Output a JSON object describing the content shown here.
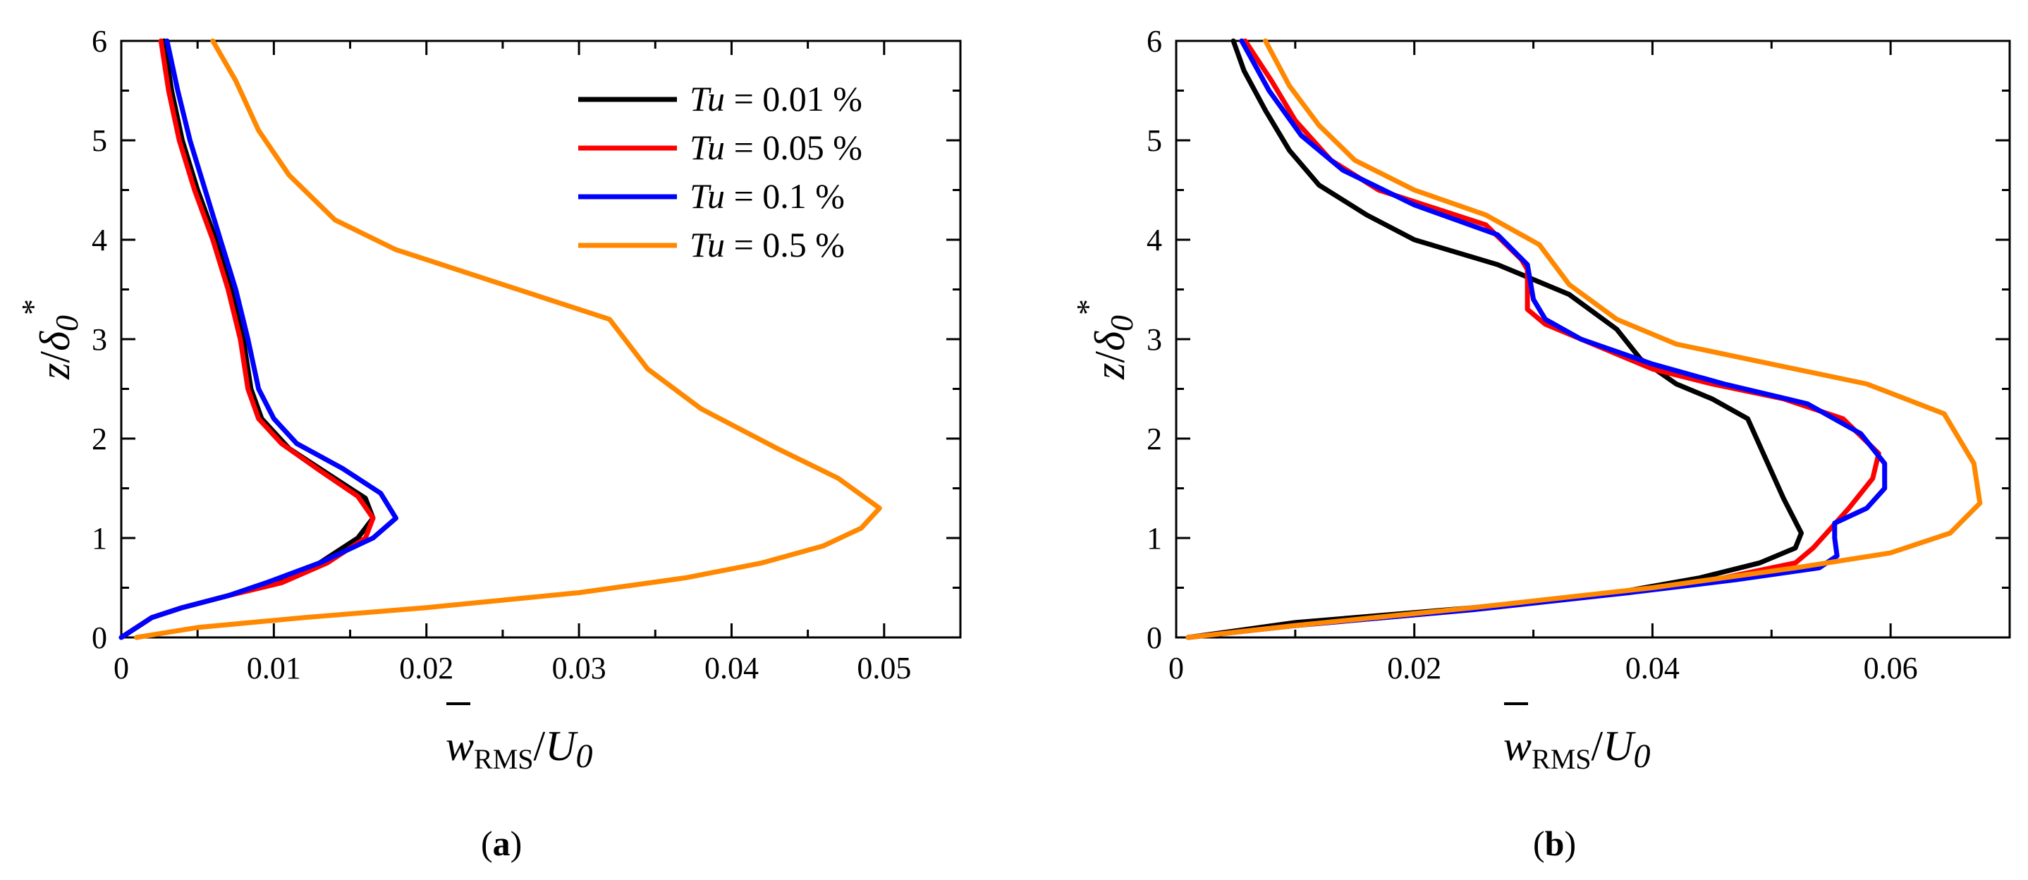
{
  "chart_data": [
    {
      "type": "line",
      "panel_label": "a",
      "xlabel": {
        "symbol": "w",
        "subscript": "RMS",
        "denominator": "U",
        "denominator_subscript": "0"
      },
      "ylabel": {
        "numerator": "z",
        "denominator": "δ",
        "denominator_subscript": "0",
        "superscript": "*"
      },
      "xlim": [
        0,
        0.055
      ],
      "ylim": [
        0,
        6
      ],
      "xticks": [
        0,
        0.01,
        0.02,
        0.03,
        0.04,
        0.05
      ],
      "xtick_labels": [
        "0",
        "0.01",
        "0.02",
        "0.03",
        "0.04",
        "0.05"
      ],
      "yticks": [
        0,
        1,
        2,
        3,
        4,
        5,
        6
      ],
      "ytick_labels": [
        "0",
        "1",
        "2",
        "3",
        "4",
        "5",
        "6"
      ],
      "legend_position": "top-right",
      "grid": false,
      "series": [
        {
          "name": "Tu = 0.01 %",
          "tu_value": "0.01",
          "color": "#000000",
          "points": [
            [
              0,
              0
            ],
            [
              0.002,
              0.2
            ],
            [
              0.004,
              0.3
            ],
            [
              0.007,
              0.42
            ],
            [
              0.01,
              0.55
            ],
            [
              0.013,
              0.75
            ],
            [
              0.0155,
              1.0
            ],
            [
              0.0165,
              1.2
            ],
            [
              0.016,
              1.4
            ],
            [
              0.0135,
              1.65
            ],
            [
              0.011,
              1.9
            ],
            [
              0.0092,
              2.2
            ],
            [
              0.0085,
              2.5
            ],
            [
              0.008,
              3.0
            ],
            [
              0.0072,
              3.5
            ],
            [
              0.0062,
              4.0
            ],
            [
              0.005,
              4.5
            ],
            [
              0.004,
              5.0
            ],
            [
              0.0033,
              5.5
            ],
            [
              0.0028,
              6.0
            ]
          ]
        },
        {
          "name": "Tu = 0.05 %",
          "tu_value": "0.05",
          "color": "#ff0000",
          "points": [
            [
              0,
              0
            ],
            [
              0.002,
              0.2
            ],
            [
              0.004,
              0.3
            ],
            [
              0.007,
              0.42
            ],
            [
              0.0105,
              0.55
            ],
            [
              0.0135,
              0.75
            ],
            [
              0.016,
              1.0
            ],
            [
              0.0165,
              1.2
            ],
            [
              0.0155,
              1.42
            ],
            [
              0.013,
              1.68
            ],
            [
              0.0105,
              1.95
            ],
            [
              0.009,
              2.2
            ],
            [
              0.0083,
              2.5
            ],
            [
              0.0078,
              3.0
            ],
            [
              0.007,
              3.5
            ],
            [
              0.006,
              4.0
            ],
            [
              0.0048,
              4.5
            ],
            [
              0.0038,
              5.0
            ],
            [
              0.0031,
              5.5
            ],
            [
              0.0026,
              6.0
            ]
          ]
        },
        {
          "name": "Tu = 0.1 %",
          "tu_value": "0.1",
          "color": "#0000ff",
          "points": [
            [
              0,
              0
            ],
            [
              0.002,
              0.2
            ],
            [
              0.004,
              0.3
            ],
            [
              0.007,
              0.42
            ],
            [
              0.0095,
              0.55
            ],
            [
              0.013,
              0.75
            ],
            [
              0.0165,
              1.0
            ],
            [
              0.018,
              1.2
            ],
            [
              0.017,
              1.45
            ],
            [
              0.0145,
              1.7
            ],
            [
              0.0115,
              1.95
            ],
            [
              0.01,
              2.2
            ],
            [
              0.009,
              2.5
            ],
            [
              0.0083,
              3.0
            ],
            [
              0.0075,
              3.5
            ],
            [
              0.0065,
              4.0
            ],
            [
              0.0055,
              4.5
            ],
            [
              0.0045,
              5.0
            ],
            [
              0.0037,
              5.5
            ],
            [
              0.003,
              6.0
            ]
          ]
        },
        {
          "name": "Tu = 0.5 %",
          "tu_value": "0.5",
          "color": "#ff8800",
          "points": [
            [
              0.001,
              0
            ],
            [
              0.005,
              0.1
            ],
            [
              0.012,
              0.2
            ],
            [
              0.02,
              0.3
            ],
            [
              0.03,
              0.45
            ],
            [
              0.037,
              0.6
            ],
            [
              0.042,
              0.75
            ],
            [
              0.046,
              0.92
            ],
            [
              0.0485,
              1.1
            ],
            [
              0.0497,
              1.3
            ],
            [
              0.047,
              1.6
            ],
            [
              0.043,
              1.9
            ],
            [
              0.038,
              2.3
            ],
            [
              0.0345,
              2.7
            ],
            [
              0.032,
              3.2
            ],
            [
              0.025,
              3.55
            ],
            [
              0.018,
              3.9
            ],
            [
              0.014,
              4.2
            ],
            [
              0.011,
              4.65
            ],
            [
              0.009,
              5.1
            ],
            [
              0.0075,
              5.6
            ],
            [
              0.006,
              6.0
            ]
          ]
        }
      ]
    },
    {
      "type": "line",
      "panel_label": "b",
      "xlabel": {
        "symbol": "w",
        "subscript": "RMS",
        "denominator": "U",
        "denominator_subscript": "0"
      },
      "ylabel": {
        "numerator": "z",
        "denominator": "δ",
        "denominator_subscript": "0",
        "superscript": "*"
      },
      "xlim": [
        0,
        0.07
      ],
      "ylim": [
        0,
        6
      ],
      "xticks": [
        0,
        0.02,
        0.04,
        0.06
      ],
      "xtick_labels": [
        "0",
        "0.02",
        "0.04",
        "0.06"
      ],
      "yticks": [
        0,
        1,
        2,
        3,
        4,
        5,
        6
      ],
      "ytick_labels": [
        "0",
        "1",
        "2",
        "3",
        "4",
        "5",
        "6"
      ],
      "grid": false,
      "series": [
        {
          "name": "Tu = 0.01 %",
          "color": "#000000",
          "points": [
            [
              0.001,
              0
            ],
            [
              0.01,
              0.15
            ],
            [
              0.025,
              0.3
            ],
            [
              0.037,
              0.45
            ],
            [
              0.044,
              0.6
            ],
            [
              0.049,
              0.75
            ],
            [
              0.052,
              0.9
            ],
            [
              0.0525,
              1.05
            ],
            [
              0.051,
              1.4
            ],
            [
              0.0495,
              1.8
            ],
            [
              0.048,
              2.2
            ],
            [
              0.045,
              2.4
            ],
            [
              0.042,
              2.55
            ],
            [
              0.039,
              2.8
            ],
            [
              0.037,
              3.1
            ],
            [
              0.033,
              3.45
            ],
            [
              0.027,
              3.75
            ],
            [
              0.02,
              4.0
            ],
            [
              0.016,
              4.25
            ],
            [
              0.012,
              4.55
            ],
            [
              0.0095,
              4.9
            ],
            [
              0.0075,
              5.3
            ],
            [
              0.0057,
              5.7
            ],
            [
              0.0048,
              6.0
            ]
          ]
        },
        {
          "name": "Tu = 0.05 %",
          "color": "#ff0000",
          "points": [
            [
              0.001,
              0
            ],
            [
              0.01,
              0.12
            ],
            [
              0.025,
              0.28
            ],
            [
              0.038,
              0.45
            ],
            [
              0.046,
              0.6
            ],
            [
              0.052,
              0.75
            ],
            [
              0.0535,
              0.9
            ],
            [
              0.055,
              1.1
            ],
            [
              0.0565,
              1.3
            ],
            [
              0.0585,
              1.6
            ],
            [
              0.059,
              1.85
            ],
            [
              0.056,
              2.2
            ],
            [
              0.051,
              2.4
            ],
            [
              0.045,
              2.55
            ],
            [
              0.04,
              2.7
            ],
            [
              0.035,
              2.95
            ],
            [
              0.031,
              3.15
            ],
            [
              0.0295,
              3.3
            ],
            [
              0.0295,
              3.7
            ],
            [
              0.029,
              3.8
            ],
            [
              0.026,
              4.15
            ],
            [
              0.017,
              4.5
            ],
            [
              0.013,
              4.8
            ],
            [
              0.01,
              5.2
            ],
            [
              0.008,
              5.6
            ],
            [
              0.0058,
              6.0
            ]
          ]
        },
        {
          "name": "Tu = 0.1 %",
          "color": "#0000ff",
          "points": [
            [
              0.001,
              0
            ],
            [
              0.01,
              0.12
            ],
            [
              0.025,
              0.28
            ],
            [
              0.038,
              0.45
            ],
            [
              0.047,
              0.58
            ],
            [
              0.054,
              0.7
            ],
            [
              0.0555,
              0.82
            ],
            [
              0.0553,
              1.0
            ],
            [
              0.0553,
              1.15
            ],
            [
              0.058,
              1.3
            ],
            [
              0.0595,
              1.5
            ],
            [
              0.0595,
              1.75
            ],
            [
              0.0575,
              2.05
            ],
            [
              0.053,
              2.35
            ],
            [
              0.046,
              2.55
            ],
            [
              0.04,
              2.75
            ],
            [
              0.034,
              3.0
            ],
            [
              0.031,
              3.2
            ],
            [
              0.03,
              3.4
            ],
            [
              0.0295,
              3.75
            ],
            [
              0.027,
              4.05
            ],
            [
              0.02,
              4.35
            ],
            [
              0.014,
              4.7
            ],
            [
              0.0105,
              5.05
            ],
            [
              0.0078,
              5.5
            ],
            [
              0.0055,
              6.0
            ]
          ]
        },
        {
          "name": "Tu = 0.5 %",
          "color": "#ff8800",
          "points": [
            [
              0.001,
              0
            ],
            [
              0.01,
              0.12
            ],
            [
              0.025,
              0.3
            ],
            [
              0.04,
              0.5
            ],
            [
              0.052,
              0.7
            ],
            [
              0.06,
              0.85
            ],
            [
              0.065,
              1.05
            ],
            [
              0.0675,
              1.35
            ],
            [
              0.067,
              1.75
            ],
            [
              0.0645,
              2.25
            ],
            [
              0.058,
              2.55
            ],
            [
              0.05,
              2.75
            ],
            [
              0.042,
              2.95
            ],
            [
              0.037,
              3.2
            ],
            [
              0.033,
              3.55
            ],
            [
              0.0305,
              3.95
            ],
            [
              0.026,
              4.25
            ],
            [
              0.02,
              4.5
            ],
            [
              0.015,
              4.8
            ],
            [
              0.012,
              5.15
            ],
            [
              0.0095,
              5.55
            ],
            [
              0.0075,
              6.0
            ]
          ]
        }
      ]
    }
  ]
}
